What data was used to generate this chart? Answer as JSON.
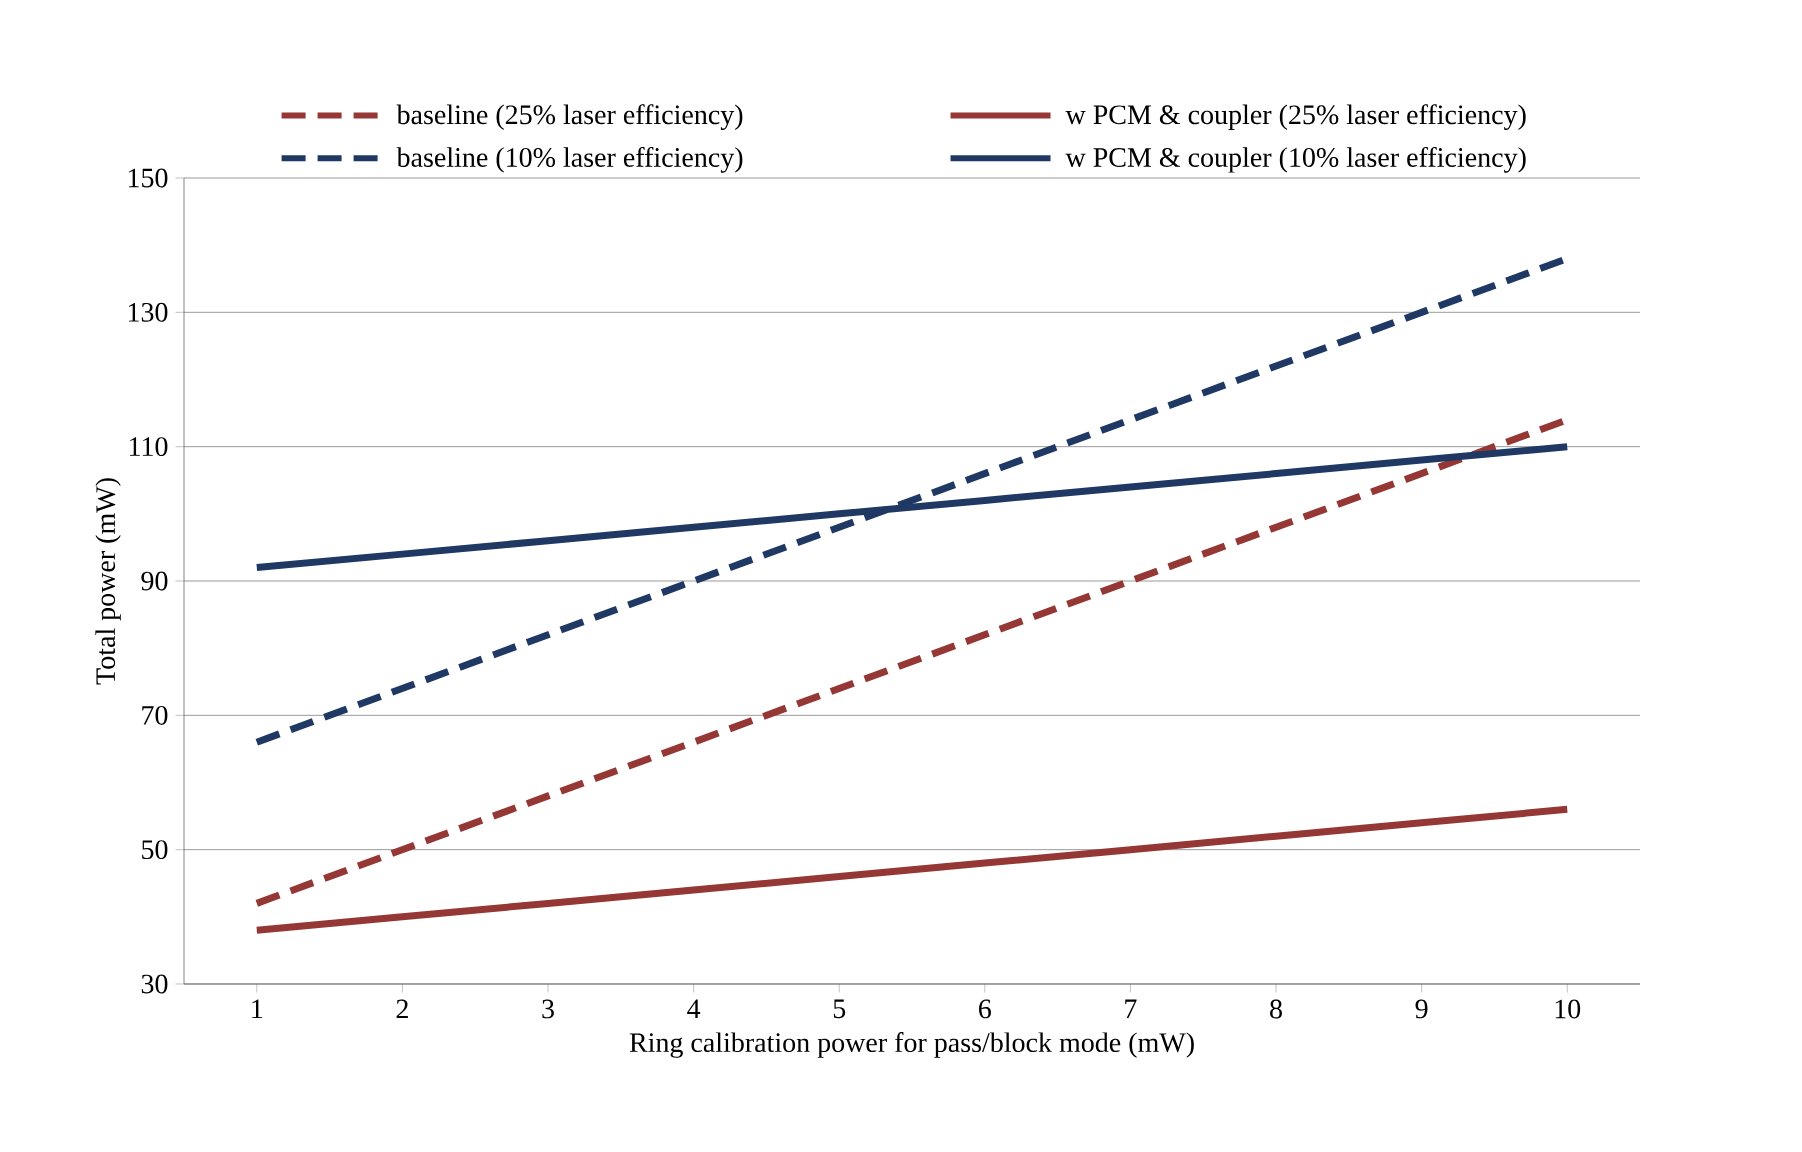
{
  "chart_data": {
    "type": "line",
    "xlabel": "Ring calibration power for pass/block mode (mW)",
    "ylabel": "Total power (mW)",
    "categories": [
      "1",
      "2",
      "3",
      "4",
      "5",
      "6",
      "7",
      "8",
      "9",
      "10"
    ],
    "series": [
      {
        "name": "baseline (25% laser efficiency)",
        "color": "#953735",
        "line_style": "dashed",
        "values": [
          42,
          50,
          58,
          66,
          74,
          82,
          90,
          98,
          106,
          114
        ]
      },
      {
        "name": "w PCM & coupler (25% laser efficiency)",
        "color": "#953735",
        "line_style": "solid",
        "values": [
          38,
          40,
          42,
          44,
          46,
          48,
          50,
          52,
          54,
          56
        ]
      },
      {
        "name": "baseline (10% laser efficiency)",
        "color": "#1f3864",
        "line_style": "dashed",
        "values": [
          66,
          74,
          82,
          90,
          98,
          106,
          114,
          122,
          130,
          138
        ]
      },
      {
        "name": "w PCM & coupler (10% laser efficiency)",
        "color": "#1f3864",
        "line_style": "solid",
        "values": [
          92,
          94,
          96,
          98,
          100,
          102,
          104,
          106,
          108,
          110
        ]
      }
    ],
    "ylim": [
      30,
      150
    ],
    "yticks": [
      30,
      50,
      70,
      90,
      110,
      130,
      150
    ],
    "grid": "y",
    "legend": "top",
    "marker": "none"
  }
}
